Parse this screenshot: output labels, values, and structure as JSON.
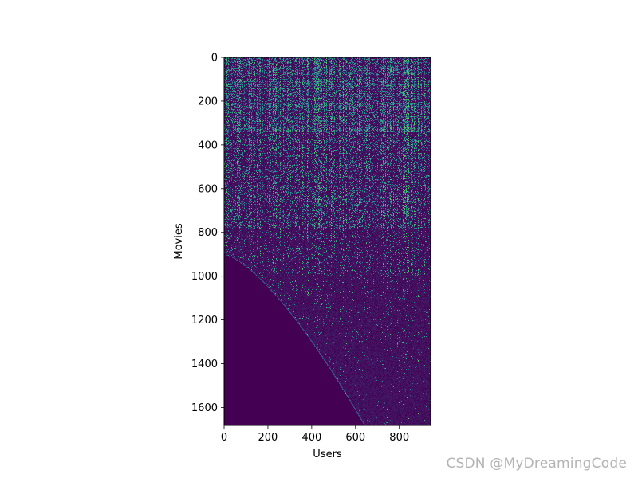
{
  "watermark": "CSDN @MyDreamingCode",
  "chart_data": {
    "type": "heatmap",
    "xlabel": "Users",
    "ylabel": "Movies",
    "xlim": [
      0,
      943
    ],
    "ylim": [
      1682,
      0
    ],
    "x_ticks": [
      0,
      200,
      400,
      600,
      800
    ],
    "y_ticks": [
      0,
      200,
      400,
      600,
      800,
      1000,
      1200,
      1400,
      1600
    ],
    "colormap": "viridis",
    "colors": {
      "low": "#440154",
      "mid_low": "#3b528b",
      "mid": "#21918c",
      "high": "#5ec962"
    },
    "grid": false,
    "legend": "none"
  }
}
